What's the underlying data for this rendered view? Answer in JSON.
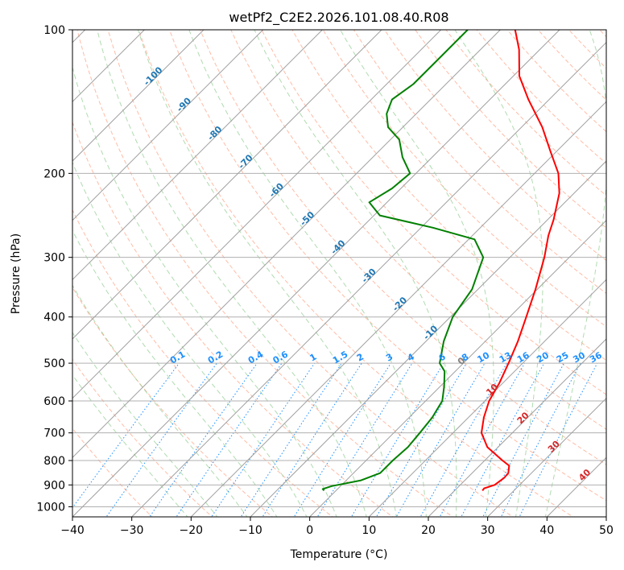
{
  "chart_data": {
    "type": "line",
    "subtype": "skew-t log-p diagram",
    "title": "wetPf2_C2E2.2026.101.08.40.R08",
    "xlabel": "Temperature (°C)",
    "ylabel": "Pressure (hPa)",
    "xlim": [
      -40,
      50
    ],
    "ylim": [
      1050,
      100
    ],
    "y_scale": "log",
    "x_ticks": [
      -40,
      -30,
      -20,
      -10,
      0,
      10,
      20,
      30,
      40,
      50
    ],
    "y_ticks": [
      100,
      200,
      300,
      400,
      500,
      600,
      700,
      800,
      900,
      1000
    ],
    "series": [
      {
        "name": "temperature",
        "color": "#ff0000",
        "points": [
          {
            "p": 925,
            "t": 24.7
          },
          {
            "p": 915,
            "t": 24.6
          },
          {
            "p": 900,
            "t": 25.8
          },
          {
            "p": 870,
            "t": 26.2
          },
          {
            "p": 850,
            "t": 26.1
          },
          {
            "p": 820,
            "t": 25.0
          },
          {
            "p": 800,
            "t": 23.0
          },
          {
            "p": 750,
            "t": 18.2
          },
          {
            "p": 700,
            "t": 14.8
          },
          {
            "p": 650,
            "t": 12.6
          },
          {
            "p": 600,
            "t": 10.7
          },
          {
            "p": 550,
            "t": 9.4
          },
          {
            "p": 500,
            "t": 7.6
          },
          {
            "p": 450,
            "t": 5.5
          },
          {
            "p": 400,
            "t": 2.8
          },
          {
            "p": 350,
            "t": -0.3
          },
          {
            "p": 300,
            "t": -4.2
          },
          {
            "p": 270,
            "t": -7.2
          },
          {
            "p": 250,
            "t": -9.0
          },
          {
            "p": 220,
            "t": -12.5
          },
          {
            "p": 200,
            "t": -16.0
          },
          {
            "p": 180,
            "t": -21.0
          },
          {
            "p": 160,
            "t": -26.5
          },
          {
            "p": 140,
            "t": -33.5
          },
          {
            "p": 125,
            "t": -39.0
          },
          {
            "p": 110,
            "t": -43.5
          },
          {
            "p": 100,
            "t": -47.5
          }
        ]
      },
      {
        "name": "dewpoint",
        "color": "#008000",
        "points": [
          {
            "p": 925,
            "t": -2.0
          },
          {
            "p": 918,
            "t": -2.5
          },
          {
            "p": 905,
            "t": -1.5
          },
          {
            "p": 880,
            "t": 2.5
          },
          {
            "p": 850,
            "t": 4.5
          },
          {
            "p": 800,
            "t": 4.5
          },
          {
            "p": 750,
            "t": 4.8
          },
          {
            "p": 700,
            "t": 4.4
          },
          {
            "p": 650,
            "t": 3.9
          },
          {
            "p": 600,
            "t": 2.8
          },
          {
            "p": 560,
            "t": 0.7
          },
          {
            "p": 520,
            "t": -1.8
          },
          {
            "p": 500,
            "t": -4.0
          },
          {
            "p": 450,
            "t": -7.0
          },
          {
            "p": 400,
            "t": -9.6
          },
          {
            "p": 350,
            "t": -11.0
          },
          {
            "p": 300,
            "t": -14.5
          },
          {
            "p": 275,
            "t": -19.0
          },
          {
            "p": 260,
            "t": -28.0
          },
          {
            "p": 245,
            "t": -39.0
          },
          {
            "p": 230,
            "t": -43.0
          },
          {
            "p": 215,
            "t": -41.5
          },
          {
            "p": 200,
            "t": -41.0
          },
          {
            "p": 185,
            "t": -45.0
          },
          {
            "p": 170,
            "t": -48.5
          },
          {
            "p": 160,
            "t": -52.5
          },
          {
            "p": 150,
            "t": -55.0
          },
          {
            "p": 140,
            "t": -56.5
          },
          {
            "p": 130,
            "t": -55.5
          },
          {
            "p": 115,
            "t": -55.5
          },
          {
            "p": 100,
            "t": -55.5
          }
        ]
      }
    ],
    "isotherm_labels": [
      "-100",
      "-90",
      "-80",
      "-70",
      "-60",
      "-50",
      "-40",
      "-30",
      "-20",
      "-10",
      "0",
      "10",
      "20",
      "30",
      "40"
    ],
    "mixing_ratio_labels": [
      "0.1",
      "0.2",
      "0.4",
      "0.6",
      "1",
      "1.5",
      "2",
      "3",
      "4",
      "6",
      "8",
      "10",
      "13",
      "16",
      "20",
      "25",
      "30",
      "36"
    ],
    "background_lines": [
      "skewed isotherms (gray)",
      "dry adiabats (dashed orange)",
      "moist adiabats (dashed green)",
      "mixing ratio lines (dotted blue)"
    ],
    "grid": true
  },
  "colors": {
    "temperature": "#ff0000",
    "dewpoint": "#008000",
    "isotherm_label_cold": "#1f77b4",
    "isotherm_label_zero": "#808080",
    "isotherm_label_warm": "#d62728",
    "mixing_ratio": "#1e90ff",
    "dry_adiabat": "#ff9f80",
    "moist_adiabat": "#8fcc8f",
    "isotherm_line": "#a0a0a0"
  }
}
